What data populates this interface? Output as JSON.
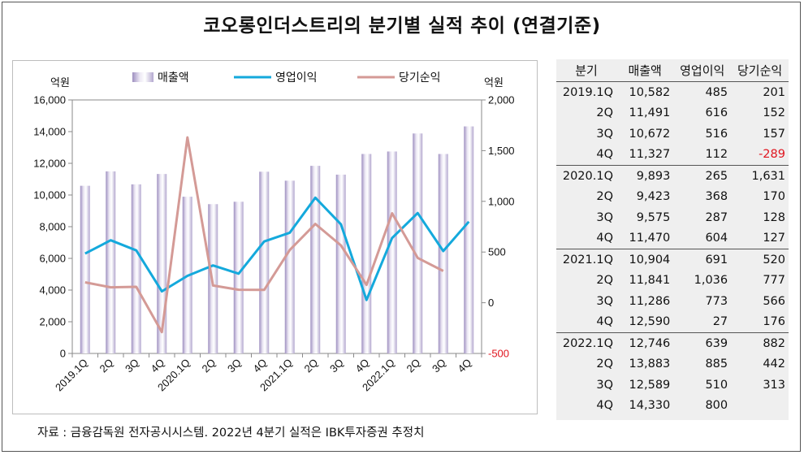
{
  "title": "코오롱인더스트리의 분기별 실적 추이 (연결기준)",
  "source": "자료 : 금융감독원 전자공시시스템. 2022년 4분기 실적은 IBK투자증권 추정치",
  "chart_data": {
    "type": "bar+line",
    "title": "",
    "categories": [
      "2019.1Q",
      "2Q",
      "3Q",
      "4Q",
      "2020.1Q",
      "2Q",
      "3Q",
      "4Q",
      "2021.1Q",
      "2Q",
      "3Q",
      "4Q",
      "2022.1Q",
      "2Q",
      "3Q",
      "4Q"
    ],
    "left_axis": {
      "unit": "억원",
      "ylim": [
        0,
        16000
      ],
      "ticks": [
        "0",
        "2,000",
        "4,000",
        "6,000",
        "8,000",
        "10,000",
        "12,000",
        "14,000",
        "16,000"
      ]
    },
    "right_axis": {
      "unit": "억원",
      "ylim": [
        -500,
        2000
      ],
      "ticks": [
        "-500",
        "0",
        "500",
        "1,000",
        "1,500",
        "2,000"
      ]
    },
    "legend_position": "top",
    "series": [
      {
        "name": "매출액",
        "kind": "bar",
        "axis": "left",
        "color": "#c9bfdc",
        "values": [
          10582,
          11491,
          10672,
          11327,
          9893,
          9423,
          9575,
          11470,
          10904,
          11841,
          11286,
          12590,
          12746,
          13883,
          12589,
          14330
        ]
      },
      {
        "name": "영업이익",
        "kind": "line",
        "axis": "right",
        "color": "#14a9dc",
        "values": [
          485,
          616,
          516,
          112,
          265,
          368,
          287,
          604,
          691,
          1036,
          773,
          27,
          639,
          885,
          510,
          800
        ]
      },
      {
        "name": "당기순익",
        "kind": "line",
        "axis": "right",
        "color": "#d49a96",
        "values": [
          201,
          152,
          157,
          -289,
          1631,
          170,
          128,
          127,
          520,
          777,
          566,
          176,
          882,
          442,
          313,
          null
        ]
      }
    ],
    "grid": false
  },
  "table": {
    "headers": [
      "분기",
      "매출액",
      "영업이익",
      "당기순익"
    ],
    "groups": [
      [
        [
          "2019.1Q",
          "10,582",
          "485",
          "201"
        ],
        [
          "2Q",
          "11,491",
          "616",
          "152"
        ],
        [
          "3Q",
          "10,672",
          "516",
          "157"
        ],
        [
          "4Q",
          "11,327",
          "112",
          "-289"
        ]
      ],
      [
        [
          "2020.1Q",
          "9,893",
          "265",
          "1,631"
        ],
        [
          "2Q",
          "9,423",
          "368",
          "170"
        ],
        [
          "3Q",
          "9,575",
          "287",
          "128"
        ],
        [
          "4Q",
          "11,470",
          "604",
          "127"
        ]
      ],
      [
        [
          "2021.1Q",
          "10,904",
          "691",
          "520"
        ],
        [
          "2Q",
          "11,841",
          "1,036",
          "777"
        ],
        [
          "3Q",
          "11,286",
          "773",
          "566"
        ],
        [
          "4Q",
          "12,590",
          "27",
          "176"
        ]
      ],
      [
        [
          "2022.1Q",
          "12,746",
          "639",
          "882"
        ],
        [
          "2Q",
          "13,883",
          "885",
          "442"
        ],
        [
          "3Q",
          "12,589",
          "510",
          "313"
        ],
        [
          "4Q",
          "14,330",
          "800",
          ""
        ]
      ]
    ],
    "negative_color": "#e0141e"
  }
}
